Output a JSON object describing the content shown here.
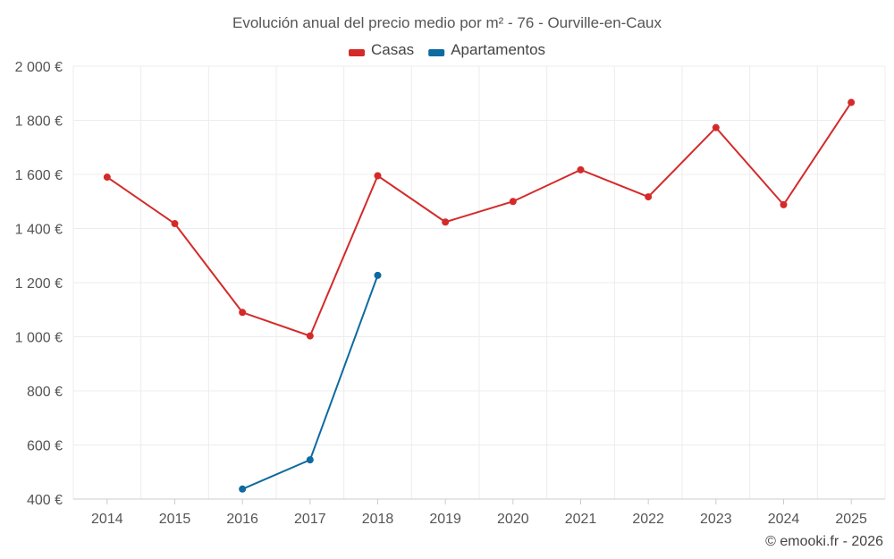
{
  "chart_data": {
    "type": "line",
    "title": "Evolución anual del precio medio por m² - 76 - Ourville-en-Caux",
    "categories": [
      "2014",
      "2015",
      "2016",
      "2017",
      "2018",
      "2019",
      "2020",
      "2021",
      "2022",
      "2023",
      "2024",
      "2025"
    ],
    "ylim": [
      400,
      2000
    ],
    "yticks": [
      400,
      600,
      800,
      1000,
      1200,
      1400,
      1600,
      1800,
      2000
    ],
    "ytick_labels": [
      "400 €",
      "600 €",
      "800 €",
      "1 000 €",
      "1 200 €",
      "1 400 €",
      "1 600 €",
      "1 800 €",
      "2 000 €"
    ],
    "grid": true,
    "legend_position": "top-center",
    "series": [
      {
        "name": "Casas",
        "color": "#d42a2a",
        "values": [
          1590,
          1418,
          1090,
          1003,
          1595,
          1424,
          1500,
          1617,
          1517,
          1773,
          1488,
          1866
        ]
      },
      {
        "name": "Apartamentos",
        "color": "#0e6aa0",
        "values": [
          null,
          null,
          437,
          545,
          1227,
          null,
          null,
          null,
          null,
          null,
          null,
          null
        ]
      }
    ]
  },
  "credit": "© emooki.fr - 2026"
}
